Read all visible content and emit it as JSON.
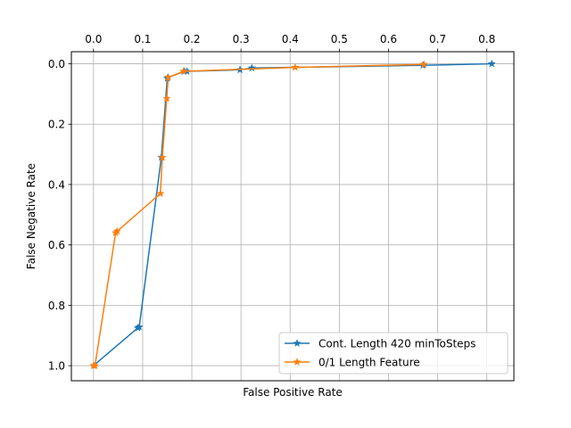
{
  "chart_data": {
    "type": "line",
    "title": "",
    "xlabel": "False Positive Rate",
    "ylabel": "False Negative Rate",
    "x_axis_position": "top",
    "y_axis_inverted": true,
    "xlim": [
      -0.045,
      0.855
    ],
    "ylim": [
      -0.04,
      1.05
    ],
    "x_ticks": [
      0.0,
      0.1,
      0.2,
      0.3,
      0.4,
      0.5,
      0.6,
      0.7,
      0.8
    ],
    "x_tick_labels": [
      "0.0",
      "0.1",
      "0.2",
      "0.3",
      "0.4",
      "0.5",
      "0.6",
      "0.7",
      "0.8"
    ],
    "y_ticks": [
      0.0,
      0.2,
      0.4,
      0.6,
      0.8,
      1.0
    ],
    "y_tick_labels": [
      "0.0",
      "0.2",
      "0.4",
      "0.6",
      "0.8",
      "1.0"
    ],
    "grid": true,
    "legend_position": "bottom-right",
    "marker": "star",
    "series": [
      {
        "name": "Cont. Length 420 minToSteps",
        "color": "#1f77b4",
        "x": [
          0.0,
          0.09,
          0.093,
          0.138,
          0.15,
          0.152,
          0.185,
          0.19,
          0.298,
          0.322,
          0.67,
          0.81
        ],
        "y": [
          1.0,
          0.875,
          0.872,
          0.31,
          0.048,
          0.045,
          0.025,
          0.025,
          0.02,
          0.014,
          0.005,
          0.0
        ]
      },
      {
        "name": "0/1 Length Feature",
        "color": "#ff7f0e",
        "x": [
          0.0,
          0.003,
          0.045,
          0.048,
          0.136,
          0.14,
          0.149,
          0.152,
          0.183,
          0.41,
          0.672
        ],
        "y": [
          1.0,
          1.0,
          0.56,
          0.555,
          0.43,
          0.31,
          0.115,
          0.045,
          0.025,
          0.012,
          0.002
        ]
      }
    ]
  }
}
